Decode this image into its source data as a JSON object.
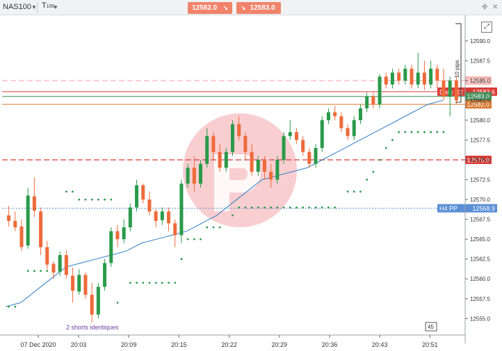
{
  "toolbar": {
    "symbol": "NAS100",
    "symbol_caret": "▼",
    "timeframe": "T",
    "timeframe_sub": "100",
    "timeframe_caret": "▼",
    "pin_icon": "pin-icon",
    "close_icon": "close-icon"
  },
  "quotes": {
    "bid": "12582.0",
    "ask": "12583.0",
    "bid_arrow": "↘",
    "ask_arrow": "↘",
    "color": "#f0836a"
  },
  "expand_icon": "external-link-icon",
  "pips_label": "10 pips",
  "footer": {
    "note": "2 shorts identiques",
    "cursor_badge": "45"
  },
  "levels": [
    {
      "name": "Daily R2",
      "value": 12583.6,
      "label": "12583.6",
      "color": "#d83a35",
      "style": "solid"
    },
    {
      "name": "",
      "value": 12585.0,
      "label": "12585.0",
      "color": "#f6b4b0",
      "style": "dashed"
    },
    {
      "name": "",
      "value": 12583.0,
      "label": "12583.0",
      "color": "#3e8e55",
      "style": "solid"
    },
    {
      "name": "",
      "value": 12582.0,
      "label": "12582.0",
      "color": "#d8792f",
      "style": "solid"
    },
    {
      "name": "",
      "value": 12575.0,
      "label": "12575.0",
      "color": "#d83a35",
      "style": "dashed"
    },
    {
      "name": "H4 PP",
      "value": 12568.9,
      "label": "12568.9",
      "color": "#5a8fd6",
      "style": "dotted"
    }
  ],
  "chart_data": {
    "type": "candlestick",
    "ylim": [
      12554.5,
      12592.7
    ],
    "y_ticks": [
      "12555.0",
      "12557.5",
      "12560.0",
      "12562.5",
      "12565.0",
      "12567.5",
      "12570.0",
      "12572.5",
      "12575.0",
      "12577.5",
      "12580.0",
      "12582.5",
      "12585.0",
      "12587.5",
      "12590.0"
    ],
    "x_ticks": [
      "07 Dec 2020",
      "20:03",
      "20:09",
      "20:15",
      "20:22",
      "20:29",
      "20:36",
      "20:43",
      "20:51"
    ],
    "colors": {
      "up": "#2a9a4a",
      "down": "#ee6a3a",
      "ma": "#2f7ec7",
      "sar": "#2a9a4a"
    },
    "candles": [
      [
        12568.0,
        12569.2,
        12566.6,
        12567.3
      ],
      [
        12567.3,
        12568.5,
        12566.0,
        12566.5
      ],
      [
        12566.6,
        12567.5,
        12563.5,
        12564.0
      ],
      [
        12564.2,
        12571.5,
        12563.8,
        12570.5
      ],
      [
        12570.4,
        12572.8,
        12567.8,
        12568.6
      ],
      [
        12568.5,
        12569.0,
        12563.0,
        12564.0
      ],
      [
        12564.0,
        12564.8,
        12561.2,
        12561.8
      ],
      [
        12561.9,
        12562.2,
        12560.0,
        12560.8
      ],
      [
        12560.9,
        12563.5,
        12560.4,
        12563.0
      ],
      [
        12563.0,
        12563.6,
        12560.0,
        12560.5
      ],
      [
        12560.4,
        12561.4,
        12557.0,
        12558.5
      ],
      [
        12558.4,
        12561.2,
        12558.0,
        12560.5
      ],
      [
        12560.5,
        12560.8,
        12557.5,
        12558.0
      ],
      [
        12558.0,
        12559.5,
        12554.5,
        12555.5
      ],
      [
        12555.5,
        12559.5,
        12555.0,
        12559.0
      ],
      [
        12559.0,
        12562.5,
        12558.5,
        12562.0
      ],
      [
        12562.0,
        12566.5,
        12561.5,
        12566.0
      ],
      [
        12566.0,
        12566.8,
        12564.0,
        12565.0
      ],
      [
        12565.0,
        12567.5,
        12564.5,
        12566.5
      ],
      [
        12566.5,
        12569.5,
        12566.0,
        12569.0
      ],
      [
        12569.0,
        12572.5,
        12568.5,
        12571.8
      ],
      [
        12571.8,
        12572.0,
        12569.5,
        12570.0
      ],
      [
        12570.0,
        12571.0,
        12568.0,
        12568.5
      ],
      [
        12568.5,
        12568.8,
        12566.5,
        12567.3
      ],
      [
        12567.4,
        12569.0,
        12566.8,
        12568.5
      ],
      [
        12568.5,
        12569.0,
        12566.0,
        12567.0
      ],
      [
        12567.0,
        12567.5,
        12564.0,
        12565.5
      ],
      [
        12565.5,
        12572.5,
        12564.5,
        12572.0
      ],
      [
        12572.0,
        12574.5,
        12571.5,
        12574.0
      ],
      [
        12574.0,
        12575.5,
        12571.0,
        12572.0
      ],
      [
        12572.0,
        12575.0,
        12571.5,
        12574.5
      ],
      [
        12574.5,
        12579.0,
        12574.0,
        12578.0
      ],
      [
        12578.0,
        12578.5,
        12575.0,
        12576.0
      ],
      [
        12576.0,
        12577.0,
        12573.5,
        12574.0
      ],
      [
        12574.0,
        12576.5,
        12573.5,
        12576.0
      ],
      [
        12576.0,
        12580.0,
        12575.5,
        12579.5
      ],
      [
        12579.5,
        12580.5,
        12577.5,
        12578.0
      ],
      [
        12578.0,
        12578.5,
        12575.0,
        12576.0
      ],
      [
        12576.0,
        12577.0,
        12573.0,
        12573.5
      ],
      [
        12573.5,
        12575.5,
        12573.0,
        12575.0
      ],
      [
        12575.0,
        12575.5,
        12572.5,
        12573.5
      ],
      [
        12573.5,
        12574.5,
        12571.5,
        12572.5
      ],
      [
        12572.5,
        12575.5,
        12572.0,
        12575.0
      ],
      [
        12575.0,
        12578.5,
        12574.5,
        12578.0
      ],
      [
        12578.0,
        12580.0,
        12577.5,
        12578.5
      ],
      [
        12578.5,
        12579.0,
        12577.0,
        12577.5
      ],
      [
        12577.5,
        12578.0,
        12575.5,
        12576.0
      ],
      [
        12576.0,
        12576.5,
        12574.0,
        12574.5
      ],
      [
        12574.5,
        12577.0,
        12574.0,
        12576.5
      ],
      [
        12576.5,
        12580.5,
        12576.0,
        12580.0
      ],
      [
        12580.0,
        12581.5,
        12579.5,
        12581.0
      ],
      [
        12581.0,
        12581.8,
        12580.0,
        12580.5
      ],
      [
        12580.5,
        12581.0,
        12578.5,
        12579.0
      ],
      [
        12579.0,
        12579.5,
        12577.5,
        12578.0
      ],
      [
        12578.0,
        12580.5,
        12577.5,
        12580.0
      ],
      [
        12580.0,
        12582.0,
        12579.5,
        12581.5
      ],
      [
        12581.5,
        12583.5,
        12581.0,
        12583.0
      ],
      [
        12583.0,
        12583.5,
        12581.5,
        12582.0
      ],
      [
        12582.0,
        12585.8,
        12581.5,
        12585.5
      ],
      [
        12585.5,
        12586.0,
        12584.0,
        12584.5
      ],
      [
        12584.5,
        12586.5,
        12584.0,
        12586.0
      ],
      [
        12586.0,
        12586.5,
        12584.5,
        12585.0
      ],
      [
        12585.0,
        12587.0,
        12584.5,
        12586.5
      ],
      [
        12586.5,
        12587.0,
        12584.0,
        12584.5
      ],
      [
        12584.5,
        12588.5,
        12584.0,
        12586.0
      ],
      [
        12586.0,
        12587.5,
        12583.8,
        12584.5
      ],
      [
        12584.5,
        12587.5,
        12584.0,
        12586.5
      ],
      [
        12586.5,
        12587.0,
        12584.0,
        12585.0
      ],
      [
        12585.0,
        12586.5,
        12582.5,
        12583.0
      ],
      [
        12583.0,
        12585.5,
        12580.5,
        12585.0
      ],
      [
        12585.0,
        12585.5,
        12582.0,
        12582.5
      ]
    ],
    "ma": [
      12556.5,
      12557.0,
      12558.5,
      12560.0,
      12561.5,
      12562.0,
      12562.5,
      12563.0,
      12563.5,
      12564.5,
      12565.0,
      12565.5,
      12566.0,
      12567.0,
      12568.0,
      12569.5,
      12571.0,
      12572.5,
      12573.0,
      12573.5,
      12574.0,
      12575.0,
      12576.0,
      12577.0,
      12578.0,
      12579.0,
      12580.0,
      12581.0,
      12582.0,
      12582.5
    ],
    "sar": [
      [
        0,
        12556.5
      ],
      [
        1,
        12556.5
      ],
      [
        3,
        12561.0
      ],
      [
        4,
        12561.0
      ],
      [
        5,
        12561.0
      ],
      [
        6,
        12561.0
      ],
      [
        7,
        12561.0
      ],
      [
        9,
        12571.0
      ],
      [
        10,
        12571.0
      ],
      [
        11,
        12570.0
      ],
      [
        12,
        12570.0
      ],
      [
        13,
        12570.0
      ],
      [
        14,
        12570.0
      ],
      [
        15,
        12570.0
      ],
      [
        16,
        12570.0
      ],
      [
        17,
        12557.0
      ],
      [
        19,
        12559.5
      ],
      [
        20,
        12559.5
      ],
      [
        21,
        12559.5
      ],
      [
        22,
        12559.5
      ],
      [
        23,
        12559.5
      ],
      [
        24,
        12559.5
      ],
      [
        25,
        12559.5
      ],
      [
        26,
        12559.5
      ],
      [
        27,
        12562.5
      ],
      [
        28,
        12565.0
      ],
      [
        29,
        12565.0
      ],
      [
        30,
        12565.0
      ],
      [
        31,
        12566.5
      ],
      [
        32,
        12566.5
      ],
      [
        33,
        12566.5
      ],
      [
        35,
        12568.0
      ],
      [
        36,
        12569.0
      ],
      [
        37,
        12569.0
      ],
      [
        38,
        12569.0
      ],
      [
        39,
        12569.0
      ],
      [
        40,
        12569.0
      ],
      [
        41,
        12569.0
      ],
      [
        42,
        12569.0
      ],
      [
        43,
        12569.0
      ],
      [
        44,
        12569.0
      ],
      [
        45,
        12569.0
      ],
      [
        46,
        12569.0
      ],
      [
        47,
        12569.0
      ],
      [
        48,
        12569.0
      ],
      [
        49,
        12569.0
      ],
      [
        50,
        12569.0
      ],
      [
        51,
        12569.0
      ],
      [
        53,
        12571.0
      ],
      [
        54,
        12571.0
      ],
      [
        55,
        12571.0
      ],
      [
        56,
        12572.5
      ],
      [
        57,
        12573.5
      ],
      [
        58,
        12575.0
      ],
      [
        59,
        12576.5
      ],
      [
        60,
        12577.5
      ],
      [
        61,
        12578.5
      ],
      [
        62,
        12578.5
      ],
      [
        63,
        12578.5
      ],
      [
        64,
        12578.5
      ],
      [
        65,
        12578.5
      ],
      [
        66,
        12578.5
      ],
      [
        67,
        12578.5
      ],
      [
        68,
        12578.5
      ]
    ]
  }
}
